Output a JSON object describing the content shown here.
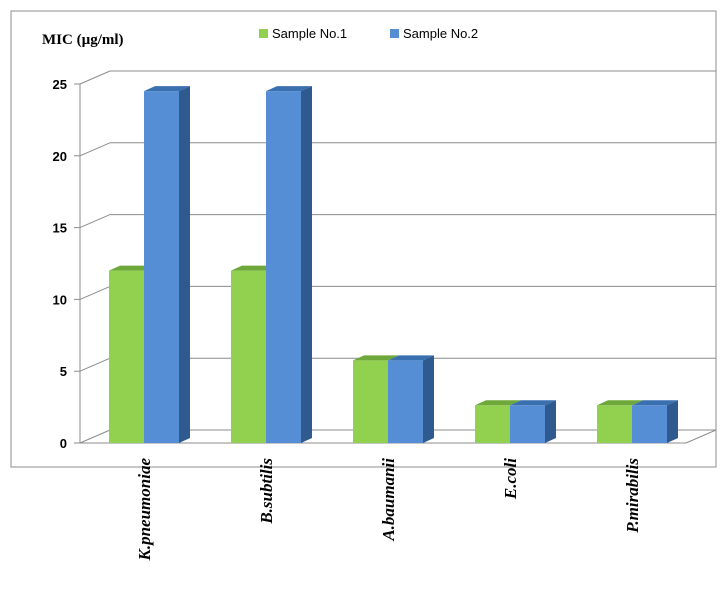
{
  "chart_data": {
    "type": "bar",
    "title": "",
    "ylabel": "MIC (µg/ml)",
    "xlabel": "",
    "categories": [
      "K.pneumoniae",
      "B.subtilis",
      "A.baumanii",
      "E.coli",
      "P.mirabilis"
    ],
    "series": [
      {
        "name": "Sample No.1",
        "values": [
          12.5,
          12.5,
          6.25,
          3.125,
          3.125
        ],
        "color": "#92D050",
        "top_color": "#6FA83A",
        "side_color": "#5E8F2E"
      },
      {
        "name": "Sample No.2",
        "values": [
          25,
          25,
          6.25,
          3.125,
          3.125
        ],
        "color": "#558ED5",
        "top_color": "#3A6FB0",
        "side_color": "#2F5A8F"
      }
    ],
    "yticks": [
      0,
      5,
      10,
      15,
      20,
      25
    ],
    "ylim": [
      0,
      25
    ],
    "grid": true,
    "legend_position": "top",
    "style": "3d-column"
  }
}
